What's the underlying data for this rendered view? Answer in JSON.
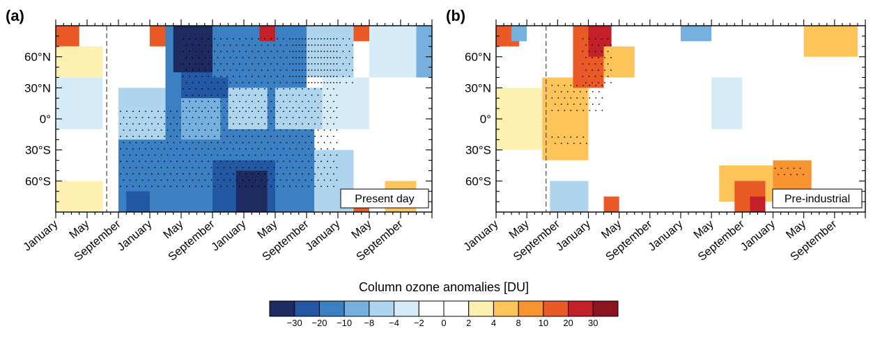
{
  "chart_data": [
    {
      "type": "heatmap",
      "panel_label": "(a)",
      "annotation": "Present day",
      "y_ticks": [
        "60°N",
        "30°N",
        "0°",
        "30°S",
        "60°S"
      ],
      "y_tick_values": [
        60,
        30,
        0,
        -30,
        -60
      ],
      "ylim": [
        -90,
        90
      ],
      "x_ticks": [
        "January",
        "May",
        "September",
        "January",
        "May",
        "September",
        "January",
        "May",
        "September",
        "January",
        "May",
        "September"
      ],
      "x_months": 48,
      "reference_line_month": 6.5,
      "grid": false,
      "legend": "colorbar bottom-center",
      "anomaly_regions": [
        {
          "start_month": 0,
          "end_month": 3,
          "lat_min": 70,
          "lat_max": 90,
          "value": 12
        },
        {
          "start_month": 0,
          "end_month": 6,
          "lat_min": 40,
          "lat_max": 70,
          "value": 3
        },
        {
          "start_month": 0,
          "end_month": 6,
          "lat_min": -10,
          "lat_max": 40,
          "value": -3
        },
        {
          "start_month": 0,
          "end_month": 6,
          "lat_min": -90,
          "lat_max": -60,
          "value": 3
        },
        {
          "start_month": 8,
          "end_month": 14,
          "lat_min": -20,
          "lat_max": 30,
          "value": -5
        },
        {
          "start_month": 8,
          "end_month": 16,
          "lat_min": -90,
          "lat_max": -20,
          "value": -12
        },
        {
          "start_month": 9,
          "end_month": 12,
          "lat_min": -90,
          "lat_max": -70,
          "value": -22
        },
        {
          "start_month": 12,
          "end_month": 14,
          "lat_min": 70,
          "lat_max": 90,
          "value": 15
        },
        {
          "start_month": 14,
          "end_month": 30,
          "lat_min": -90,
          "lat_max": 90,
          "value": -15
        },
        {
          "start_month": 15,
          "end_month": 21,
          "lat_min": 45,
          "lat_max": 90,
          "value": -35
        },
        {
          "start_month": 16,
          "end_month": 22,
          "lat_min": 20,
          "lat_max": 45,
          "value": -22
        },
        {
          "start_month": 20,
          "end_month": 24,
          "lat_min": 40,
          "lat_max": 90,
          "value": -12
        },
        {
          "start_month": 16,
          "end_month": 21,
          "lat_min": -20,
          "lat_max": 20,
          "value": -9
        },
        {
          "start_month": 22,
          "end_month": 27,
          "lat_min": -10,
          "lat_max": 30,
          "value": -7
        },
        {
          "start_month": 20,
          "end_month": 28,
          "lat_min": -90,
          "lat_max": -40,
          "value": -24
        },
        {
          "start_month": 23,
          "end_month": 27,
          "lat_min": -90,
          "lat_max": -50,
          "value": -35
        },
        {
          "start_month": 26,
          "end_month": 29,
          "lat_min": 75,
          "lat_max": 90,
          "value": 20
        },
        {
          "start_month": 28,
          "end_month": 32,
          "lat_min": 30,
          "lat_max": 90,
          "value": -11
        },
        {
          "start_month": 28,
          "end_month": 34,
          "lat_min": -10,
          "lat_max": 30,
          "value": -5
        },
        {
          "start_month": 28,
          "end_month": 33,
          "lat_min": -90,
          "lat_max": -10,
          "value": -11
        },
        {
          "start_month": 32,
          "end_month": 38,
          "lat_min": 40,
          "lat_max": 90,
          "value": -5
        },
        {
          "start_month": 34,
          "end_month": 40,
          "lat_min": -10,
          "lat_max": 40,
          "value": -3
        },
        {
          "start_month": 33,
          "end_month": 38,
          "lat_min": -90,
          "lat_max": -30,
          "value": -5
        },
        {
          "start_month": 38,
          "end_month": 40,
          "lat_min": 75,
          "lat_max": 90,
          "value": 15
        },
        {
          "start_month": 40,
          "end_month": 48,
          "lat_min": 40,
          "lat_max": 90,
          "value": -3
        },
        {
          "start_month": 38,
          "end_month": 40,
          "lat_min": -90,
          "lat_max": -70,
          "value": 12
        },
        {
          "start_month": 42,
          "end_month": 46,
          "lat_min": -90,
          "lat_max": -60,
          "value": 6
        },
        {
          "start_month": 46,
          "end_month": 48,
          "lat_min": 40,
          "lat_max": 90,
          "value": -9
        }
      ],
      "stippled_regions": [
        {
          "start_month": 8,
          "end_month": 36,
          "lat_min": -70,
          "lat_max": 10
        },
        {
          "start_month": 16,
          "end_month": 36,
          "lat_min": 10,
          "lat_max": 80
        },
        {
          "start_month": 30,
          "end_month": 38,
          "lat_min": 30,
          "lat_max": 80
        }
      ]
    },
    {
      "type": "heatmap",
      "panel_label": "(b)",
      "annotation": "Pre-industrial",
      "y_ticks": [
        "60°N",
        "30°N",
        "0°",
        "30°S",
        "60°S"
      ],
      "y_tick_values": [
        60,
        30,
        0,
        -30,
        -60
      ],
      "ylim": [
        -90,
        90
      ],
      "x_ticks": [
        "January",
        "May",
        "September",
        "January",
        "May",
        "September",
        "January",
        "May",
        "September",
        "January",
        "May",
        "September"
      ],
      "x_months": 48,
      "reference_line_month": 6.5,
      "grid": false,
      "legend": "colorbar bottom-center",
      "anomaly_regions": [
        {
          "start_month": 0,
          "end_month": 3,
          "lat_min": 70,
          "lat_max": 90,
          "value": 12
        },
        {
          "start_month": 2,
          "end_month": 4,
          "lat_min": 75,
          "lat_max": 90,
          "value": -9
        },
        {
          "start_month": 0,
          "end_month": 6,
          "lat_min": -30,
          "lat_max": 30,
          "value": 3
        },
        {
          "start_month": 6,
          "end_month": 12,
          "lat_min": -40,
          "lat_max": 40,
          "value": 6
        },
        {
          "start_month": 10,
          "end_month": 14,
          "lat_min": 30,
          "lat_max": 90,
          "value": 12
        },
        {
          "start_month": 12,
          "end_month": 15,
          "lat_min": 60,
          "lat_max": 90,
          "value": 25
        },
        {
          "start_month": 14,
          "end_month": 18,
          "lat_min": 40,
          "lat_max": 70,
          "value": 6
        },
        {
          "start_month": 7,
          "end_month": 12,
          "lat_min": -90,
          "lat_max": -60,
          "value": -5
        },
        {
          "start_month": 14,
          "end_month": 16,
          "lat_min": -90,
          "lat_max": -75,
          "value": 12
        },
        {
          "start_month": 24,
          "end_month": 28,
          "lat_min": 75,
          "lat_max": 90,
          "value": -9
        },
        {
          "start_month": 28,
          "end_month": 32,
          "lat_min": -10,
          "lat_max": 40,
          "value": -3
        },
        {
          "start_month": 29,
          "end_month": 37,
          "lat_min": -80,
          "lat_max": -45,
          "value": 7
        },
        {
          "start_month": 31,
          "end_month": 35,
          "lat_min": -90,
          "lat_max": -60,
          "value": 14
        },
        {
          "start_month": 33,
          "end_month": 35,
          "lat_min": -90,
          "lat_max": -75,
          "value": 22
        },
        {
          "start_month": 36,
          "end_month": 41,
          "lat_min": -70,
          "lat_max": -40,
          "value": 9
        },
        {
          "start_month": 40,
          "end_month": 47,
          "lat_min": 60,
          "lat_max": 90,
          "value": 5
        }
      ],
      "stippled_regions": [
        {
          "start_month": 7,
          "end_month": 14,
          "lat_min": 5,
          "lat_max": 35
        },
        {
          "start_month": 11,
          "end_month": 15,
          "lat_min": 35,
          "lat_max": 80
        },
        {
          "start_month": 7,
          "end_month": 12,
          "lat_min": -25,
          "lat_max": -15
        },
        {
          "start_month": 36,
          "end_month": 40,
          "lat_min": -55,
          "lat_max": -45
        }
      ]
    }
  ],
  "colorbar": {
    "title": "Column ozone anomalies [DU]",
    "labels": [
      "−30",
      "−20",
      "−10",
      "−8",
      "−4",
      "−2",
      "0",
      "2",
      "4",
      "8",
      "10",
      "20",
      "30"
    ],
    "boundaries": [
      -30,
      -20,
      -10,
      -8,
      -4,
      -2,
      0,
      2,
      4,
      8,
      10,
      20,
      30
    ],
    "colors": [
      "#1e2b60",
      "#2358a5",
      "#3a80c3",
      "#76b0de",
      "#aed4ee",
      "#d6ebf8",
      "#ffffff",
      "#ffffff",
      "#fdf0b0",
      "#fdc45a",
      "#f79430",
      "#ea5a26",
      "#c4202a",
      "#8b1520"
    ]
  },
  "colors": {
    "stipple": "#000000",
    "axis": "#000000",
    "dashed_line": "#555555"
  }
}
